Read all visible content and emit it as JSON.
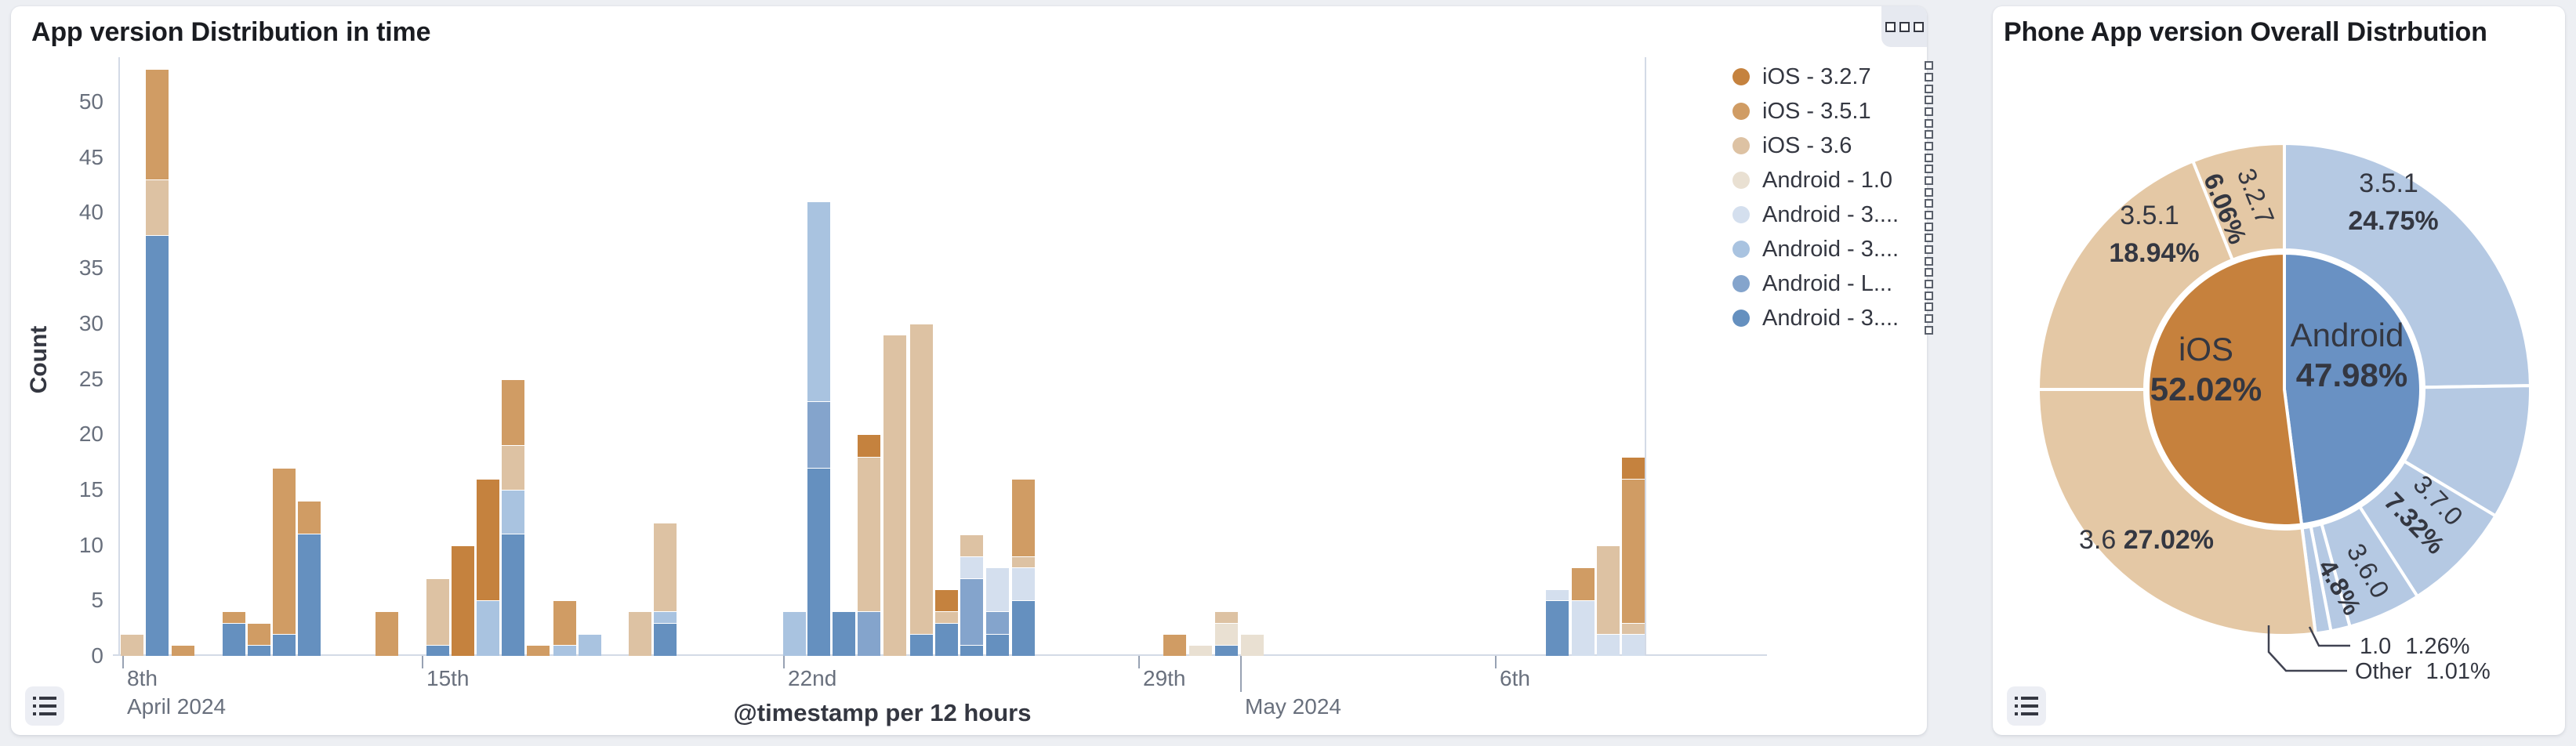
{
  "page": {
    "background": "#edeff3"
  },
  "left_panel": {
    "title": "App version Distribution in time",
    "y_axis_title": "Count",
    "x_axis_title": "@timestamp per 12 hours",
    "legend": [
      {
        "label": "iOS - 3.2.7",
        "color": "#c5823e"
      },
      {
        "label": "iOS - 3.5.1",
        "color": "#d09c64"
      },
      {
        "label": "iOS - 3.6",
        "color": "#ddc2a3"
      },
      {
        "label": "Android - 1.0",
        "color": "#e9e0d2"
      },
      {
        "label": "Android - 3....",
        "color": "#d4dfee"
      },
      {
        "label": "Android - 3....",
        "color": "#a9c3e0"
      },
      {
        "label": "Android - L...",
        "color": "#84a4cc"
      },
      {
        "label": "Android - 3....",
        "color": "#6590bf"
      }
    ]
  },
  "right_panel": {
    "title": "Phone App version Overall Distrbution"
  },
  "chart_data": [
    {
      "type": "bar",
      "stacked": true,
      "title": "App version Distribution in time",
      "xlabel": "@timestamp per 12 hours",
      "ylabel": "Count",
      "ylim": [
        0,
        50
      ],
      "grid": false,
      "legend_position": "right",
      "y_ticks": [
        0,
        5,
        10,
        15,
        20,
        25,
        30,
        35,
        40,
        45,
        50
      ],
      "x_ticks": [
        {
          "label": "8th",
          "sublabel": "April 2024",
          "x": 142,
          "tall": false
        },
        {
          "label": "15th",
          "sublabel": "",
          "x": 524,
          "tall": false
        },
        {
          "label": "22nd",
          "sublabel": "",
          "x": 985,
          "tall": false
        },
        {
          "label": "29th",
          "sublabel": "",
          "x": 1438,
          "tall": false
        },
        {
          "label": "",
          "sublabel": "May 2024",
          "x": 1568,
          "tall": true
        },
        {
          "label": "6th",
          "sublabel": "",
          "x": 1893,
          "tall": false
        }
      ],
      "series": [
        {
          "id": "ios327",
          "label": "iOS - 3.2.7",
          "color": "#c5823e"
        },
        {
          "id": "ios351",
          "label": "iOS - 3.5.1",
          "color": "#d09c64"
        },
        {
          "id": "ios36",
          "label": "iOS - 3.6",
          "color": "#ddc2a3"
        },
        {
          "id": "and10",
          "label": "Android - 1.0",
          "color": "#e9e0d2"
        },
        {
          "id": "and3vl",
          "label": "Android - 3....",
          "color": "#d4dfee"
        },
        {
          "id": "and3l",
          "label": "Android - 3....",
          "color": "#a9c3e0"
        },
        {
          "id": "andL",
          "label": "Android - L...",
          "color": "#84a4cc"
        },
        {
          "id": "and3d",
          "label": "Android - 3....",
          "color": "#6590bf"
        }
      ],
      "bars": [
        {
          "x": 140,
          "stack": [
            [
              "ios36",
              2
            ]
          ]
        },
        {
          "x": 172,
          "stack": [
            [
              "and3d",
              38
            ],
            [
              "ios36",
              5
            ],
            [
              "ios351",
              10
            ]
          ]
        },
        {
          "x": 205,
          "stack": [
            [
              "ios351",
              1
            ]
          ]
        },
        {
          "x": 270,
          "stack": [
            [
              "and3d",
              3
            ],
            [
              "ios351",
              1
            ]
          ]
        },
        {
          "x": 302,
          "stack": [
            [
              "and3d",
              1
            ],
            [
              "ios351",
              2
            ]
          ]
        },
        {
          "x": 334,
          "stack": [
            [
              "and3d",
              2
            ],
            [
              "ios351",
              15
            ]
          ]
        },
        {
          "x": 366,
          "stack": [
            [
              "and3d",
              11
            ],
            [
              "ios351",
              3
            ]
          ]
        },
        {
          "x": 465,
          "stack": [
            [
              "ios351",
              4
            ]
          ]
        },
        {
          "x": 530,
          "stack": [
            [
              "and3d",
              1
            ],
            [
              "ios36",
              6
            ]
          ]
        },
        {
          "x": 562,
          "stack": [
            [
              "ios327",
              10
            ]
          ]
        },
        {
          "x": 594,
          "stack": [
            [
              "and3l",
              5
            ],
            [
              "ios327",
              11
            ]
          ]
        },
        {
          "x": 626,
          "stack": [
            [
              "and3d",
              11
            ],
            [
              "and3l",
              4
            ],
            [
              "ios36",
              4
            ],
            [
              "ios351",
              6
            ]
          ]
        },
        {
          "x": 658,
          "stack": [
            [
              "ios351",
              1
            ]
          ]
        },
        {
          "x": 692,
          "stack": [
            [
              "and3l",
              1
            ],
            [
              "ios351",
              4
            ]
          ]
        },
        {
          "x": 724,
          "stack": [
            [
              "and3l",
              2
            ]
          ]
        },
        {
          "x": 788,
          "stack": [
            [
              "ios36",
              4
            ]
          ]
        },
        {
          "x": 820,
          "stack": [
            [
              "and3d",
              3
            ],
            [
              "and3l",
              1
            ],
            [
              "ios36",
              8
            ]
          ]
        },
        {
          "x": 985,
          "stack": [
            [
              "and3l",
              4
            ]
          ]
        },
        {
          "x": 1016,
          "stack": [
            [
              "and3d",
              17
            ],
            [
              "andL",
              6
            ],
            [
              "and3l",
              18
            ]
          ]
        },
        {
          "x": 1048,
          "stack": [
            [
              "and3d",
              4
            ]
          ]
        },
        {
          "x": 1080,
          "stack": [
            [
              "andL",
              4
            ],
            [
              "ios36",
              14
            ],
            [
              "ios327",
              2
            ]
          ]
        },
        {
          "x": 1113,
          "stack": [
            [
              "ios36",
              29
            ]
          ]
        },
        {
          "x": 1147,
          "stack": [
            [
              "and3d",
              2
            ],
            [
              "ios36",
              28
            ]
          ]
        },
        {
          "x": 1179,
          "stack": [
            [
              "and3d",
              3
            ],
            [
              "ios36",
              1
            ],
            [
              "ios327",
              2
            ]
          ]
        },
        {
          "x": 1211,
          "stack": [
            [
              "and3d",
              1
            ],
            [
              "andL",
              6
            ],
            [
              "and3vl",
              2
            ],
            [
              "ios36",
              2
            ]
          ]
        },
        {
          "x": 1244,
          "stack": [
            [
              "and3d",
              2
            ],
            [
              "andL",
              2
            ],
            [
              "and3vl",
              4
            ]
          ]
        },
        {
          "x": 1277,
          "stack": [
            [
              "and3d",
              5
            ],
            [
              "and3vl",
              3
            ],
            [
              "ios36",
              1
            ],
            [
              "ios351",
              7
            ]
          ]
        },
        {
          "x": 1470,
          "stack": [
            [
              "ios351",
              2
            ]
          ]
        },
        {
          "x": 1503,
          "stack": [
            [
              "and10",
              1
            ]
          ]
        },
        {
          "x": 1536,
          "stack": [
            [
              "and3d",
              1
            ],
            [
              "and10",
              2
            ],
            [
              "ios36",
              1
            ]
          ]
        },
        {
          "x": 1569,
          "stack": [
            [
              "and10",
              2
            ]
          ]
        },
        {
          "x": 1958,
          "stack": [
            [
              "and3d",
              5
            ],
            [
              "and3vl",
              1
            ]
          ]
        },
        {
          "x": 1991,
          "stack": [
            [
              "and3vl",
              5
            ],
            [
              "ios351",
              3
            ]
          ]
        },
        {
          "x": 2023,
          "stack": [
            [
              "and3vl",
              2
            ],
            [
              "ios36",
              8
            ]
          ]
        },
        {
          "x": 2055,
          "stack": [
            [
              "and3vl",
              2
            ],
            [
              "ios36",
              1
            ],
            [
              "ios351",
              13
            ],
            [
              "ios327",
              2
            ]
          ]
        }
      ]
    },
    {
      "type": "pie",
      "subtype": "sunburst-donut",
      "title": "Phone App version Overall Distrbution",
      "inner": [
        {
          "label": "Android",
          "pct_label": "47.98%",
          "value": 47.98,
          "color": "#6991c3"
        },
        {
          "label": "iOS",
          "pct_label": "52.02%",
          "value": 52.02,
          "color": "#c6813d"
        }
      ],
      "outer": [
        {
          "group": "Android",
          "label": "3.5.1",
          "pct_label": "24.75%",
          "value": 24.75,
          "color": "#b5c9e3"
        },
        {
          "group": "Android",
          "label": "",
          "pct_label": "",
          "value": 8.84,
          "color": "#b5c9e3"
        },
        {
          "group": "Android",
          "label": "3.7.0",
          "pct_label": "7.32%",
          "value": 7.32,
          "color": "#b5c9e3"
        },
        {
          "group": "Android",
          "label": "3.6.0",
          "pct_label": "4.8%",
          "value": 4.8,
          "color": "#b5c9e3"
        },
        {
          "group": "Android",
          "label": "1.0",
          "pct_label": "1.26%",
          "value": 1.26,
          "color": "#b5c9e3"
        },
        {
          "group": "Android",
          "label": "Other",
          "pct_label": "1.01%",
          "value": 1.01,
          "color": "#b5c9e3"
        },
        {
          "group": "iOS",
          "label": "3.6",
          "pct_label": "27.02%",
          "value": 27.02,
          "color": "#e4c8a5"
        },
        {
          "group": "iOS",
          "label": "3.5.1",
          "pct_label": "18.94%",
          "value": 18.94,
          "color": "#e4c8a5"
        },
        {
          "group": "iOS",
          "label": "3.2.7",
          "pct_label": "6.06%",
          "value": 6.06,
          "color": "#e4c8a5"
        }
      ]
    }
  ]
}
